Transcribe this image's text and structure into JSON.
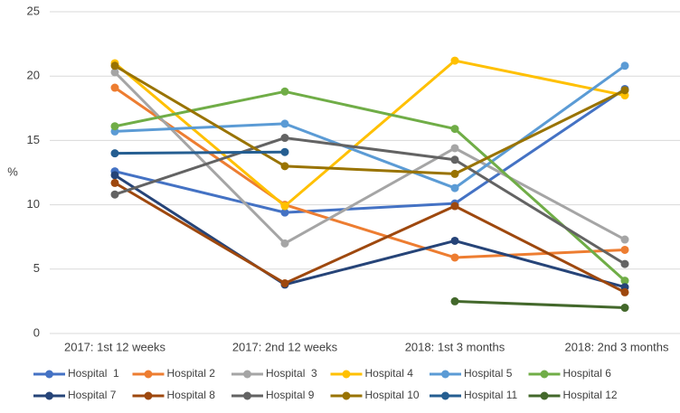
{
  "chart_data": {
    "type": "line",
    "y_label": "%",
    "categories": [
      "2017: 1st 12 weeks",
      "2017: 2nd 12 weeks",
      "2018: 1st 3 months",
      "2018: 2nd 3 months"
    ],
    "ylim": [
      0,
      25
    ],
    "yticks": [
      0,
      5,
      10,
      15,
      20,
      25
    ],
    "grid": true,
    "legend": "bottom",
    "series": [
      {
        "name": "Hospital  1",
        "color": "#4472c4",
        "values": [
          12.6,
          9.4,
          10.1,
          19.0
        ]
      },
      {
        "name": "Hospital 2",
        "color": "#ed7d31",
        "values": [
          19.1,
          10.0,
          5.9,
          6.5
        ]
      },
      {
        "name": "Hospital  3",
        "color": "#a5a5a5",
        "values": [
          20.3,
          7.0,
          14.4,
          7.3
        ]
      },
      {
        "name": "Hospital 4",
        "color": "#ffc000",
        "values": [
          21.0,
          9.9,
          21.2,
          18.5
        ]
      },
      {
        "name": "Hospital 5",
        "color": "#5b9bd5",
        "values": [
          15.7,
          16.3,
          11.3,
          20.8
        ]
      },
      {
        "name": "Hospital 6",
        "color": "#70ad47",
        "values": [
          16.1,
          18.8,
          15.9,
          4.1
        ]
      },
      {
        "name": "Hospital 7",
        "color": "#264478",
        "values": [
          12.3,
          3.8,
          7.2,
          3.6
        ]
      },
      {
        "name": "Hospital 8",
        "color": "#9e480e",
        "values": [
          11.7,
          3.9,
          9.9,
          3.2
        ]
      },
      {
        "name": "Hospital 9",
        "color": "#636363",
        "values": [
          10.8,
          15.2,
          13.5,
          5.4
        ]
      },
      {
        "name": "Hospital 10",
        "color": "#997300",
        "values": [
          20.8,
          13.0,
          12.4,
          18.9
        ]
      },
      {
        "name": "Hospital 11",
        "color": "#255e91",
        "values": [
          14.0,
          14.1,
          null,
          null
        ]
      },
      {
        "name": "Hospital 12",
        "color": "#43682b",
        "values": [
          null,
          null,
          2.5,
          2.0
        ]
      }
    ]
  }
}
